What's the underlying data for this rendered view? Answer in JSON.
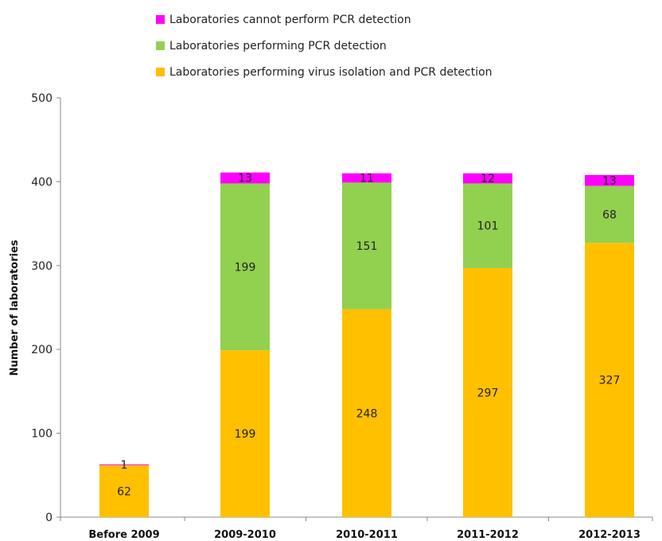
{
  "chart_data": {
    "type": "bar",
    "stacked": true,
    "title": "",
    "xlabel": "",
    "ylabel": "Number of laboratories",
    "ylim": [
      0,
      500
    ],
    "yticks": [
      0,
      100,
      200,
      300,
      400,
      500
    ],
    "grid": false,
    "legend_position": "top",
    "categories": [
      "Before 2009",
      "2009-2010",
      "2010-2011",
      "2011-2012",
      "2012-2013"
    ],
    "series": [
      {
        "name": "Laboratories performing virus isolation and PCR detection",
        "color": "#FFC000",
        "values": [
          62,
          199,
          248,
          297,
          327
        ]
      },
      {
        "name": "Laboratories performing PCR detection",
        "color": "#92D050",
        "values": [
          0,
          199,
          151,
          101,
          68
        ]
      },
      {
        "name": "Laboratories cannot perform PCR detection",
        "color": "#FF00FF",
        "values": [
          1,
          13,
          11,
          12,
          13
        ]
      }
    ],
    "legend_order": [
      2,
      1,
      0
    ]
  }
}
